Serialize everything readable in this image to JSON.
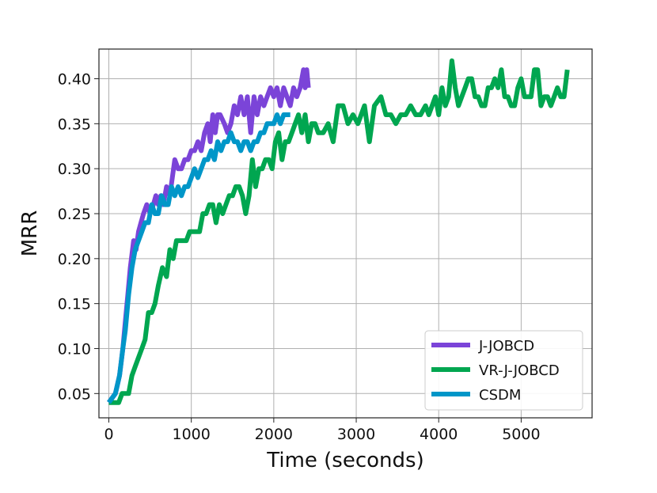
{
  "chart_data": {
    "type": "line",
    "title": "",
    "xlabel": "Time (seconds)",
    "ylabel": "MRR",
    "xlim": [
      -120,
      5860
    ],
    "ylim": [
      0.023,
      0.433
    ],
    "xticks": [
      0,
      1000,
      2000,
      3000,
      4000,
      5000
    ],
    "yticks": [
      0.05,
      0.1,
      0.15,
      0.2,
      0.25,
      0.3,
      0.35,
      0.4
    ],
    "ytick_labels": [
      "0.05",
      "0.10",
      "0.15",
      "0.20",
      "0.25",
      "0.30",
      "0.35",
      "0.40"
    ],
    "grid": true,
    "legend_position": "lower-right",
    "series": [
      {
        "name": "J-JOBCD",
        "color": "#7b44d8",
        "x": [
          0,
          80,
          130,
          170,
          200,
          230,
          260,
          300,
          330,
          360,
          390,
          420,
          460,
          500,
          540,
          570,
          600,
          630,
          660,
          700,
          740,
          770,
          800,
          840,
          880,
          920,
          960,
          1000,
          1040,
          1080,
          1120,
          1160,
          1200,
          1230,
          1260,
          1290,
          1320,
          1350,
          1400,
          1440,
          1480,
          1520,
          1560,
          1600,
          1640,
          1680,
          1720,
          1760,
          1800,
          1840,
          1880,
          1920,
          1960,
          2000,
          2040,
          2080,
          2120,
          2160,
          2200,
          2240,
          2280,
          2320,
          2360,
          2380,
          2400,
          2420
        ],
        "y": [
          0.04,
          0.05,
          0.07,
          0.1,
          0.13,
          0.16,
          0.19,
          0.22,
          0.21,
          0.23,
          0.24,
          0.25,
          0.26,
          0.25,
          0.26,
          0.27,
          0.26,
          0.27,
          0.26,
          0.28,
          0.27,
          0.29,
          0.31,
          0.3,
          0.3,
          0.31,
          0.31,
          0.32,
          0.32,
          0.33,
          0.32,
          0.34,
          0.35,
          0.33,
          0.36,
          0.34,
          0.36,
          0.36,
          0.35,
          0.34,
          0.35,
          0.37,
          0.36,
          0.38,
          0.36,
          0.38,
          0.34,
          0.38,
          0.36,
          0.38,
          0.37,
          0.38,
          0.39,
          0.38,
          0.39,
          0.37,
          0.39,
          0.38,
          0.37,
          0.39,
          0.38,
          0.39,
          0.41,
          0.39,
          0.41,
          0.39
        ]
      },
      {
        "name": "VR-J-JOBCD",
        "color": "#00a650",
        "x": [
          0,
          80,
          120,
          160,
          200,
          240,
          280,
          320,
          360,
          400,
          440,
          480,
          520,
          560,
          600,
          650,
          700,
          740,
          780,
          820,
          860,
          900,
          940,
          980,
          1020,
          1060,
          1100,
          1140,
          1180,
          1220,
          1260,
          1300,
          1340,
          1380,
          1420,
          1460,
          1500,
          1540,
          1580,
          1620,
          1660,
          1700,
          1740,
          1780,
          1820,
          1860,
          1900,
          1940,
          1980,
          2020,
          2060,
          2100,
          2140,
          2180,
          2220,
          2260,
          2300,
          2340,
          2380,
          2420,
          2460,
          2500,
          2540,
          2600,
          2660,
          2720,
          2780,
          2840,
          2900,
          2960,
          3020,
          3100,
          3160,
          3220,
          3300,
          3360,
          3420,
          3480,
          3540,
          3600,
          3660,
          3720,
          3780,
          3840,
          3880,
          3920,
          3960,
          4000,
          4040,
          4080,
          4120,
          4160,
          4200,
          4240,
          4280,
          4320,
          4360,
          4400,
          4440,
          4480,
          4520,
          4560,
          4600,
          4640,
          4680,
          4720,
          4760,
          4800,
          4840,
          4880,
          4920,
          4960,
          5000,
          5040,
          5080,
          5120,
          5160,
          5200,
          5240,
          5280,
          5320,
          5360,
          5400,
          5440,
          5480,
          5520,
          5560
        ],
        "y": [
          0.04,
          0.04,
          0.04,
          0.05,
          0.05,
          0.05,
          0.07,
          0.08,
          0.09,
          0.1,
          0.11,
          0.14,
          0.14,
          0.15,
          0.17,
          0.19,
          0.18,
          0.21,
          0.2,
          0.22,
          0.22,
          0.22,
          0.22,
          0.23,
          0.23,
          0.23,
          0.23,
          0.25,
          0.25,
          0.26,
          0.26,
          0.24,
          0.26,
          0.25,
          0.26,
          0.27,
          0.27,
          0.28,
          0.28,
          0.27,
          0.25,
          0.27,
          0.31,
          0.28,
          0.3,
          0.3,
          0.31,
          0.31,
          0.3,
          0.33,
          0.34,
          0.31,
          0.33,
          0.33,
          0.34,
          0.35,
          0.36,
          0.34,
          0.36,
          0.33,
          0.35,
          0.35,
          0.34,
          0.34,
          0.35,
          0.33,
          0.37,
          0.37,
          0.35,
          0.36,
          0.35,
          0.37,
          0.33,
          0.37,
          0.38,
          0.36,
          0.36,
          0.35,
          0.36,
          0.36,
          0.37,
          0.36,
          0.36,
          0.37,
          0.36,
          0.37,
          0.38,
          0.36,
          0.39,
          0.37,
          0.38,
          0.42,
          0.39,
          0.37,
          0.38,
          0.39,
          0.4,
          0.4,
          0.38,
          0.38,
          0.37,
          0.37,
          0.39,
          0.39,
          0.4,
          0.39,
          0.41,
          0.38,
          0.38,
          0.37,
          0.37,
          0.39,
          0.4,
          0.38,
          0.38,
          0.38,
          0.41,
          0.41,
          0.37,
          0.38,
          0.38,
          0.37,
          0.38,
          0.39,
          0.38,
          0.38,
          0.41
        ]
      },
      {
        "name": "CSDM",
        "color": "#0096c8",
        "x": [
          0,
          80,
          130,
          170,
          200,
          240,
          280,
          320,
          360,
          400,
          440,
          480,
          520,
          560,
          600,
          640,
          680,
          720,
          760,
          800,
          840,
          880,
          920,
          960,
          1000,
          1040,
          1080,
          1120,
          1160,
          1200,
          1240,
          1280,
          1320,
          1360,
          1400,
          1440,
          1480,
          1520,
          1560,
          1600,
          1640,
          1680,
          1720,
          1760,
          1800,
          1840,
          1880,
          1920,
          1960,
          2000,
          2040,
          2080,
          2120,
          2160,
          2200
        ],
        "y": [
          0.04,
          0.05,
          0.07,
          0.1,
          0.12,
          0.16,
          0.19,
          0.21,
          0.22,
          0.23,
          0.24,
          0.24,
          0.26,
          0.25,
          0.25,
          0.27,
          0.26,
          0.26,
          0.28,
          0.27,
          0.28,
          0.27,
          0.28,
          0.28,
          0.29,
          0.3,
          0.29,
          0.3,
          0.31,
          0.31,
          0.32,
          0.31,
          0.33,
          0.32,
          0.33,
          0.33,
          0.34,
          0.33,
          0.33,
          0.32,
          0.33,
          0.33,
          0.32,
          0.33,
          0.33,
          0.34,
          0.34,
          0.35,
          0.35,
          0.35,
          0.36,
          0.35,
          0.36,
          0.36,
          0.36
        ]
      }
    ]
  }
}
